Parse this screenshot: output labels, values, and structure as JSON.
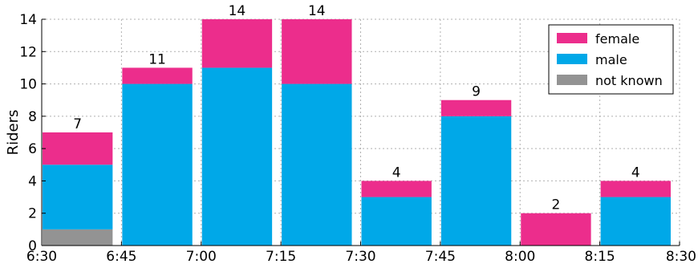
{
  "chart_data": {
    "type": "bar",
    "stacked": true,
    "ylabel": "Riders",
    "ylim": [
      0,
      14
    ],
    "yticks": [
      0,
      2,
      4,
      6,
      8,
      10,
      12,
      14
    ],
    "xlim": [
      "6:30",
      "8:30"
    ],
    "xticks": [
      "6:30",
      "6:45",
      "7:00",
      "7:15",
      "7:30",
      "7:45",
      "8:00",
      "8:15",
      "8:30"
    ],
    "grid": true,
    "legend_position": "top-right",
    "categories": [
      "6:30",
      "6:45",
      "7:00",
      "7:15",
      "7:30",
      "7:45",
      "8:00",
      "8:15"
    ],
    "series": [
      {
        "name": "not known",
        "color": "#939393",
        "values": [
          1,
          0,
          0,
          0,
          0,
          0,
          0,
          0
        ]
      },
      {
        "name": "male",
        "color": "#00a8e8",
        "values": [
          4,
          10,
          11,
          10,
          3,
          8,
          0,
          3
        ]
      },
      {
        "name": "female",
        "color": "#ec2d8c",
        "values": [
          2,
          1,
          3,
          4,
          1,
          1,
          2,
          1
        ]
      }
    ],
    "totals": [
      7,
      11,
      14,
      14,
      4,
      9,
      2,
      4
    ],
    "legend_order": [
      "female",
      "male",
      "not known"
    ]
  }
}
